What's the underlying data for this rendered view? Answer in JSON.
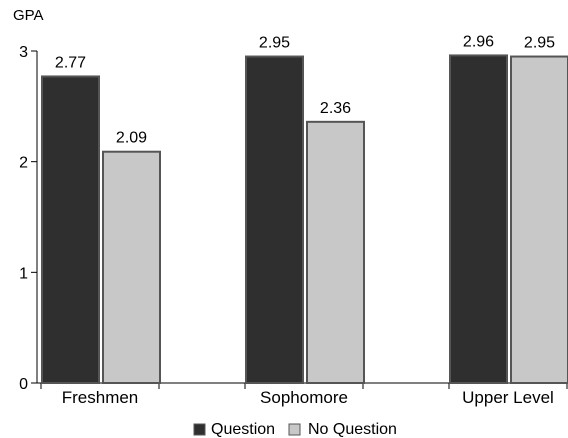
{
  "chart_data": {
    "type": "bar",
    "ylabel": "GPA",
    "ylim": [
      0,
      3
    ],
    "yticks": [
      0,
      1,
      2,
      3
    ],
    "categories": [
      "Freshmen",
      "Sophomore",
      "Upper Level"
    ],
    "series": [
      {
        "name": "Question",
        "values": [
          2.77,
          2.95,
          2.96
        ],
        "color": "#2f2f2f"
      },
      {
        "name": "No Question",
        "values": [
          2.09,
          2.36,
          2.95
        ],
        "color": "#c8c8c8"
      }
    ],
    "data_labels": [
      [
        "2.77",
        "2.95",
        "2.96"
      ],
      [
        "2.09",
        "2.36",
        "2.95"
      ]
    ],
    "grid": false,
    "legend_position": "bottom"
  }
}
